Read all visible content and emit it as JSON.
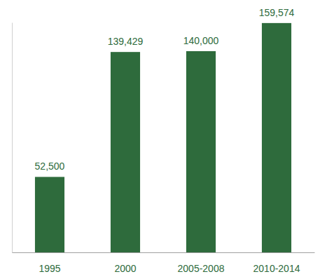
{
  "chart_data": {
    "type": "bar",
    "categories": [
      "1995",
      "2000",
      "2005-2008",
      "2010-2014"
    ],
    "values": [
      52500,
      139429,
      140000,
      159574
    ],
    "value_labels": [
      "52,500",
      "139,429",
      "140,000",
      "159,574"
    ],
    "color": "#2e6b3c",
    "ylim": [
      0,
      160000
    ],
    "data_labels": true,
    "tick_labels": "x",
    "grid": false
  }
}
